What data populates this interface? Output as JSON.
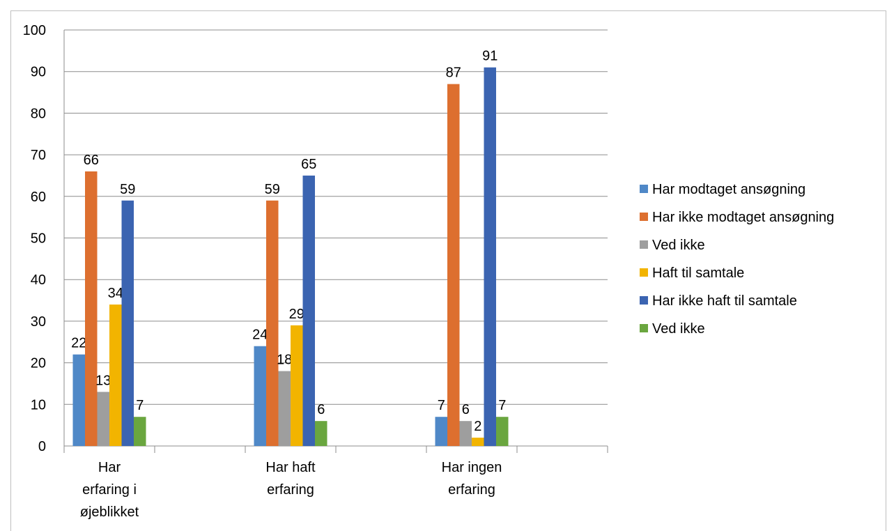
{
  "chart_data": {
    "type": "bar",
    "title": "",
    "xlabel": "",
    "ylabel": "",
    "ylim": [
      0,
      100
    ],
    "yticks": [
      0,
      10,
      20,
      30,
      40,
      50,
      60,
      70,
      80,
      90,
      100
    ],
    "grid": true,
    "legend_position": "right",
    "categories": [
      [
        "Har",
        "erfaring i",
        "øjeblikket"
      ],
      [
        "Har haft",
        "erfaring"
      ],
      [
        "Har ingen",
        "erfaring"
      ]
    ],
    "series": [
      {
        "name": "Har modtaget ansøgning",
        "color": "#4f88c7",
        "values": [
          22,
          24,
          7
        ]
      },
      {
        "name": "Har ikke modtaget ansøgning",
        "color": "#dd6f2f",
        "values": [
          66,
          59,
          87
        ]
      },
      {
        "name": "Ved ikke",
        "color": "#9e9e9e",
        "values": [
          13,
          18,
          6
        ]
      },
      {
        "name": "Haft til samtale",
        "color": "#f2b400",
        "values": [
          34,
          29,
          2
        ]
      },
      {
        "name": "Har ikke haft til samtale",
        "color": "#3b64b1",
        "values": [
          59,
          65,
          91
        ]
      },
      {
        "name": "Ved ikke",
        "color": "#6aa63f",
        "values": [
          7,
          6,
          7
        ]
      }
    ]
  }
}
